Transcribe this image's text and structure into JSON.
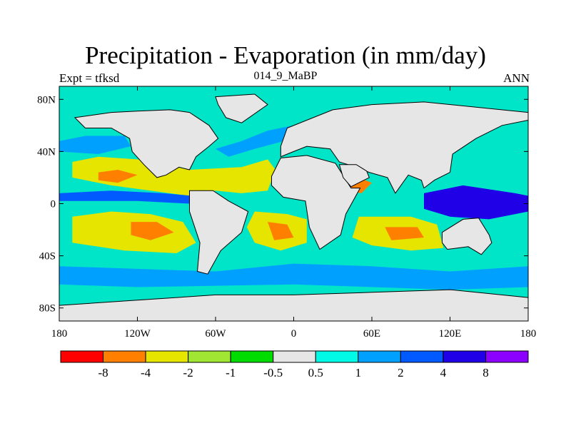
{
  "title": "Precipitation - Evaporation (in mm/day)",
  "subtitle_left": "Expt = tfksd",
  "subtitle_center": "014_9_MaBP",
  "subtitle_right": "ANN",
  "map": {
    "projection": "cylindrical equidistant",
    "lon_range": [
      -180,
      180
    ],
    "lat_range": [
      -90,
      90
    ],
    "land_color": "#e6e6e6",
    "ocean_base_color": "#00e5c8"
  },
  "axes": {
    "x_ticks": [
      {
        "value": -180,
        "label": "180"
      },
      {
        "value": -120,
        "label": "120W"
      },
      {
        "value": -60,
        "label": "60W"
      },
      {
        "value": 0,
        "label": "0"
      },
      {
        "value": 60,
        "label": "60E"
      },
      {
        "value": 120,
        "label": "120E"
      },
      {
        "value": 180,
        "label": "180"
      }
    ],
    "y_ticks": [
      {
        "value": 80,
        "label": "80N"
      },
      {
        "value": 40,
        "label": "40N"
      },
      {
        "value": 0,
        "label": "0"
      },
      {
        "value": -40,
        "label": "40S"
      },
      {
        "value": -80,
        "label": "80S"
      }
    ]
  },
  "colorbar": {
    "colors": [
      "#ff0000",
      "#ff7f00",
      "#e5e500",
      "#a0e632",
      "#00dc00",
      "#e6e6e6",
      "#00fae6",
      "#00a0ff",
      "#005aff",
      "#2000e6",
      "#8c00ff"
    ],
    "labels": [
      "-8",
      "-4",
      "-2",
      "-1",
      "-0.5",
      "0.5",
      "1",
      "2",
      "4",
      "8"
    ]
  },
  "features": [
    {
      "name": "north-atlantic-dry-zone",
      "color": "#e5e500",
      "points": [
        [
          -170,
          32
        ],
        [
          -150,
          36
        ],
        [
          -120,
          34
        ],
        [
          -100,
          30
        ],
        [
          -80,
          26
        ],
        [
          -40,
          28
        ],
        [
          -20,
          34
        ],
        [
          -14,
          26
        ],
        [
          -20,
          10
        ],
        [
          -40,
          8
        ],
        [
          -60,
          10
        ],
        [
          -80,
          6
        ],
        [
          -110,
          10
        ],
        [
          -140,
          14
        ],
        [
          -170,
          20
        ]
      ]
    },
    {
      "name": "north-pacific-max",
      "color": "#ff7f00",
      "points": [
        [
          -150,
          24
        ],
        [
          -135,
          26
        ],
        [
          -120,
          22
        ],
        [
          -135,
          16
        ],
        [
          -150,
          18
        ]
      ]
    },
    {
      "name": "south-pacific-dry-zone",
      "color": "#e5e500",
      "points": [
        [
          -170,
          -10
        ],
        [
          -140,
          -6
        ],
        [
          -110,
          -8
        ],
        [
          -85,
          -14
        ],
        [
          -75,
          -30
        ],
        [
          -90,
          -38
        ],
        [
          -130,
          -36
        ],
        [
          -170,
          -30
        ]
      ]
    },
    {
      "name": "south-pacific-max",
      "color": "#ff7f00",
      "points": [
        [
          -125,
          -14
        ],
        [
          -105,
          -14
        ],
        [
          -92,
          -22
        ],
        [
          -110,
          -28
        ],
        [
          -125,
          -24
        ]
      ]
    },
    {
      "name": "south-atlantic-dry-zone",
      "color": "#e5e500",
      "points": [
        [
          -30,
          -6
        ],
        [
          -5,
          -8
        ],
        [
          10,
          -12
        ],
        [
          10,
          -30
        ],
        [
          -10,
          -36
        ],
        [
          -30,
          -30
        ],
        [
          -36,
          -18
        ]
      ]
    },
    {
      "name": "south-atlantic-max",
      "color": "#ff7f00",
      "points": [
        [
          -20,
          -14
        ],
        [
          -5,
          -16
        ],
        [
          0,
          -26
        ],
        [
          -15,
          -28
        ]
      ]
    },
    {
      "name": "indian-ocean-dry-zone",
      "color": "#e5e500",
      "points": [
        [
          50,
          -10
        ],
        [
          90,
          -10
        ],
        [
          110,
          -16
        ],
        [
          115,
          -34
        ],
        [
          90,
          -36
        ],
        [
          60,
          -32
        ],
        [
          45,
          -26
        ]
      ]
    },
    {
      "name": "indian-ocean-max",
      "color": "#ff7f00",
      "points": [
        [
          70,
          -18
        ],
        [
          95,
          -18
        ],
        [
          100,
          -26
        ],
        [
          75,
          -28
        ]
      ]
    },
    {
      "name": "arabian-sea-max",
      "color": "#ff7f00",
      "points": [
        [
          38,
          20
        ],
        [
          50,
          20
        ],
        [
          60,
          16
        ],
        [
          52,
          8
        ],
        [
          42,
          10
        ]
      ]
    },
    {
      "name": "itcz-pacific",
      "color": "#005aff",
      "points": [
        [
          -180,
          8
        ],
        [
          -140,
          10
        ],
        [
          -100,
          8
        ],
        [
          -78,
          6
        ],
        [
          -80,
          0
        ],
        [
          -120,
          2
        ],
        [
          -180,
          2
        ]
      ]
    },
    {
      "name": "warm-pool",
      "color": "#2000e6",
      "points": [
        [
          100,
          8
        ],
        [
          130,
          14
        ],
        [
          170,
          8
        ],
        [
          180,
          6
        ],
        [
          180,
          -6
        ],
        [
          150,
          -12
        ],
        [
          120,
          -10
        ],
        [
          100,
          -4
        ]
      ]
    },
    {
      "name": "amazon-wet-zone",
      "color": "#005aff",
      "points": [
        [
          -78,
          4
        ],
        [
          -60,
          6
        ],
        [
          -50,
          0
        ],
        [
          -55,
          -12
        ],
        [
          -70,
          -16
        ],
        [
          -78,
          -6
        ]
      ]
    },
    {
      "name": "southern-storm-track",
      "color": "#00a0ff",
      "points": [
        [
          -180,
          -48
        ],
        [
          -120,
          -50
        ],
        [
          -60,
          -52
        ],
        [
          0,
          -46
        ],
        [
          60,
          -48
        ],
        [
          120,
          -52
        ],
        [
          180,
          -48
        ],
        [
          180,
          -64
        ],
        [
          120,
          -66
        ],
        [
          0,
          -62
        ],
        [
          -120,
          -64
        ],
        [
          -180,
          -62
        ]
      ]
    },
    {
      "name": "north-pacific-storm-track",
      "color": "#00a0ff",
      "points": [
        [
          -180,
          48
        ],
        [
          -160,
          52
        ],
        [
          -130,
          52
        ],
        [
          -125,
          44
        ],
        [
          -150,
          38
        ],
        [
          -180,
          40
        ]
      ]
    },
    {
      "name": "north-atlantic-storm-track",
      "color": "#00a0ff",
      "points": [
        [
          -60,
          42
        ],
        [
          -40,
          48
        ],
        [
          -20,
          56
        ],
        [
          0,
          60
        ],
        [
          10,
          60
        ],
        [
          0,
          50
        ],
        [
          -30,
          42
        ],
        [
          -50,
          36
        ]
      ]
    }
  ],
  "land": [
    {
      "name": "north-america",
      "points": [
        [
          -168,
          66
        ],
        [
          -140,
          70
        ],
        [
          -120,
          71
        ],
        [
          -95,
          72
        ],
        [
          -80,
          70
        ],
        [
          -65,
          60
        ],
        [
          -58,
          50
        ],
        [
          -65,
          44
        ],
        [
          -75,
          36
        ],
        [
          -80,
          26
        ],
        [
          -88,
          28
        ],
        [
          -98,
          22
        ],
        [
          -105,
          20
        ],
        [
          -115,
          30
        ],
        [
          -124,
          40
        ],
        [
          -126,
          50
        ],
        [
          -140,
          58
        ],
        [
          -160,
          58
        ]
      ]
    },
    {
      "name": "greenland",
      "points": [
        [
          -60,
          82
        ],
        [
          -30,
          84
        ],
        [
          -20,
          76
        ],
        [
          -40,
          62
        ],
        [
          -52,
          66
        ],
        [
          -58,
          76
        ]
      ]
    },
    {
      "name": "south-america",
      "points": [
        [
          -80,
          10
        ],
        [
          -62,
          10
        ],
        [
          -50,
          2
        ],
        [
          -35,
          -6
        ],
        [
          -40,
          -22
        ],
        [
          -56,
          -36
        ],
        [
          -66,
          -54
        ],
        [
          -74,
          -52
        ],
        [
          -72,
          -30
        ],
        [
          -80,
          -6
        ]
      ]
    },
    {
      "name": "eurasia",
      "points": [
        [
          -10,
          36
        ],
        [
          -10,
          44
        ],
        [
          -5,
          58
        ],
        [
          10,
          64
        ],
        [
          30,
          72
        ],
        [
          60,
          76
        ],
        [
          100,
          78
        ],
        [
          140,
          74
        ],
        [
          180,
          70
        ],
        [
          180,
          64
        ],
        [
          160,
          60
        ],
        [
          140,
          50
        ],
        [
          122,
          38
        ],
        [
          120,
          24
        ],
        [
          108,
          18
        ],
        [
          100,
          12
        ],
        [
          98,
          18
        ],
        [
          88,
          22
        ],
        [
          78,
          8
        ],
        [
          72,
          20
        ],
        [
          58,
          24
        ],
        [
          48,
          28
        ],
        [
          35,
          32
        ],
        [
          28,
          42
        ],
        [
          10,
          44
        ],
        [
          0,
          40
        ]
      ]
    },
    {
      "name": "africa",
      "points": [
        [
          -17,
          21
        ],
        [
          -10,
          35
        ],
        [
          10,
          37
        ],
        [
          32,
          31
        ],
        [
          44,
          12
        ],
        [
          51,
          12
        ],
        [
          40,
          -8
        ],
        [
          36,
          -24
        ],
        [
          20,
          -35
        ],
        [
          12,
          -18
        ],
        [
          9,
          2
        ],
        [
          -8,
          5
        ],
        [
          -17,
          14
        ]
      ]
    },
    {
      "name": "arabia",
      "points": [
        [
          35,
          30
        ],
        [
          48,
          30
        ],
        [
          56,
          25
        ],
        [
          58,
          20
        ],
        [
          44,
          13
        ],
        [
          38,
          20
        ]
      ]
    },
    {
      "name": "australia",
      "points": [
        [
          114,
          -22
        ],
        [
          130,
          -12
        ],
        [
          142,
          -11
        ],
        [
          150,
          -24
        ],
        [
          152,
          -30
        ],
        [
          144,
          -39
        ],
        [
          134,
          -33
        ],
        [
          118,
          -35
        ],
        [
          114,
          -30
        ]
      ]
    },
    {
      "name": "antarctica",
      "points": [
        [
          -180,
          -78
        ],
        [
          -120,
          -74
        ],
        [
          -60,
          -70
        ],
        [
          0,
          -70
        ],
        [
          60,
          -68
        ],
        [
          120,
          -66
        ],
        [
          180,
          -72
        ],
        [
          180,
          -90
        ],
        [
          -180,
          -90
        ]
      ]
    }
  ]
}
